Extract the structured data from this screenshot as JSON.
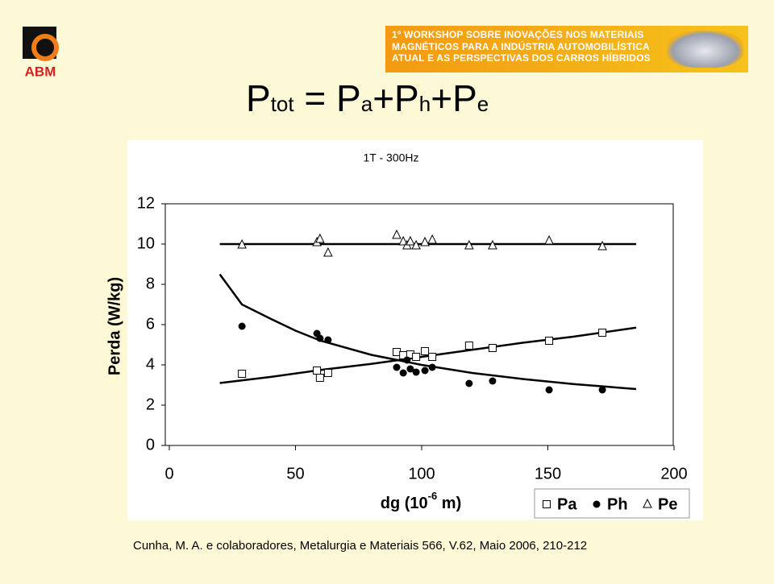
{
  "logo": {
    "text": "ABM"
  },
  "banner": {
    "lines": [
      "1º WORKSHOP SOBRE INOVAÇÕES NOS MATERIAIS",
      "MAGNÉTICOS PARA A INDÚSTRIA AUTOMOBILÍSTICA",
      "ATUAL E AS PERSPECTIVAS DOS CARROS HÍBRIDOS"
    ]
  },
  "slide_title": {
    "parts": [
      {
        "text": "P",
        "sub": false
      },
      {
        "text": "tot",
        "sub": true
      },
      {
        "text": " = P",
        "sub": false
      },
      {
        "text": "a",
        "sub": true
      },
      {
        "text": "+P",
        "sub": false
      },
      {
        "text": "h",
        "sub": true
      },
      {
        "text": "+P",
        "sub": false
      },
      {
        "text": "e",
        "sub": true
      }
    ]
  },
  "chart_data": {
    "type": "scatter",
    "title": "1T - 300Hz",
    "ylabel": "Perda (W/kg)",
    "xlabel_parts": [
      {
        "text": "dg (10",
        "sup": false
      },
      {
        "text": "-6",
        "sup": true
      },
      {
        "text": " m)",
        "sup": false
      }
    ],
    "xlim": [
      0,
      200
    ],
    "xticks": [
      0,
      50,
      100,
      150,
      200
    ],
    "ylim": [
      0,
      12
    ],
    "yticks": [
      0,
      2,
      4,
      6,
      8,
      10,
      12
    ],
    "legend": "bottom-right",
    "series": [
      {
        "name": "Pa",
        "marker": "square",
        "color": "#000000",
        "x": [
          28.8,
          58.5,
          59.7,
          62.9,
          90.1,
          92.7,
          95.5,
          97.8,
          101.3,
          104.2,
          118.8,
          128.1,
          150.5,
          171.6
        ],
        "values": [
          3.56,
          3.72,
          3.36,
          3.6,
          4.64,
          4.48,
          4.52,
          4.4,
          4.68,
          4.4,
          4.96,
          4.84,
          5.2,
          5.6
        ],
        "fit": {
          "x": [
            20,
            40,
            60,
            80,
            100,
            120,
            140,
            160,
            185
          ],
          "values": [
            3.1,
            3.4,
            3.75,
            4.05,
            4.4,
            4.75,
            5.1,
            5.4,
            5.85
          ]
        }
      },
      {
        "name": "Ph",
        "marker": "circle",
        "color": "#000000",
        "x": [
          28.8,
          58.5,
          59.7,
          62.9,
          90.1,
          92.7,
          94.2,
          95.5,
          97.8,
          101.3,
          104.2,
          118.8,
          128.1,
          150.5,
          171.6
        ],
        "values": [
          5.92,
          5.56,
          5.32,
          5.24,
          3.88,
          3.6,
          4.24,
          3.8,
          3.64,
          3.72,
          3.88,
          3.08,
          3.2,
          2.76,
          2.76
        ],
        "fit": {
          "x": [
            20,
            28.8,
            40,
            50,
            60,
            80,
            100,
            120,
            140,
            160,
            185
          ],
          "values": [
            8.5,
            7.0,
            6.3,
            5.7,
            5.2,
            4.5,
            4.0,
            3.6,
            3.3,
            3.05,
            2.8
          ]
        }
      },
      {
        "name": "Pe",
        "marker": "triangle",
        "color": "#000000",
        "x": [
          28.8,
          58.5,
          59.7,
          62.9,
          90.1,
          92.7,
          94.2,
          95.5,
          97.8,
          101.3,
          104.2,
          118.8,
          128.1,
          150.5,
          171.6
        ],
        "values": [
          9.96,
          10.08,
          10.24,
          9.56,
          10.44,
          10.12,
          9.92,
          10.12,
          9.92,
          10.08,
          10.2,
          9.92,
          9.92,
          10.16,
          9.88
        ],
        "fit": {
          "x": [
            20,
            185
          ],
          "values": [
            10,
            10
          ]
        }
      }
    ]
  },
  "citation": "Cunha, M. A. e colaboradores, Metalurgia e Materiais 566, V.62, Maio 2006, 210-212"
}
